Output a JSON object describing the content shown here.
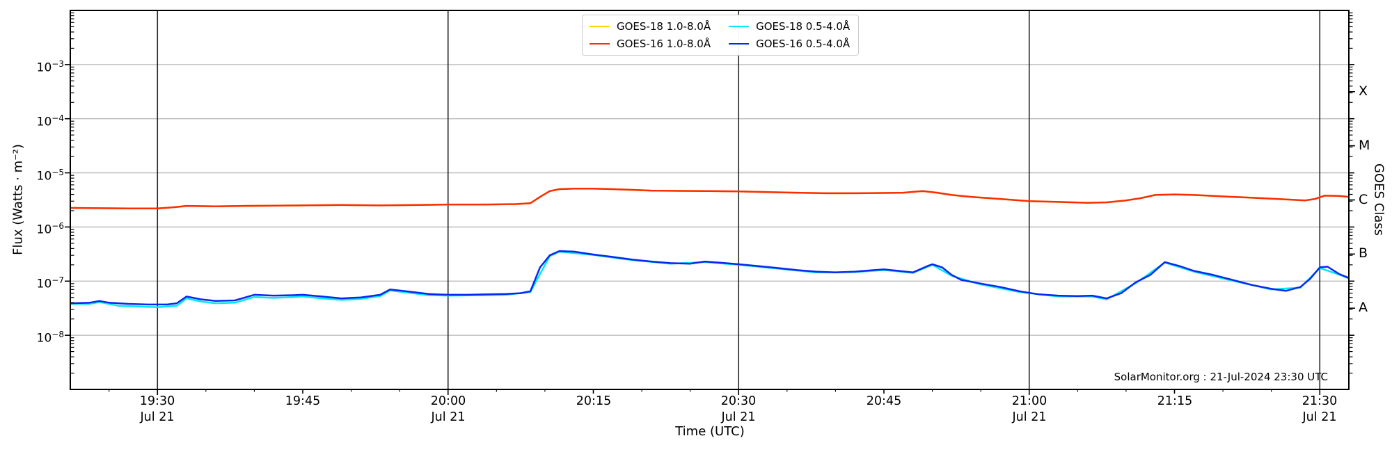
{
  "figure": {
    "attribution": "SolarMonitor.org : 21-Jul-2024 23:30 UTC",
    "background": "#ffffff"
  },
  "chart_data": {
    "type": "line",
    "title": "",
    "xlabel": "Time (UTC)",
    "ylabel": "Flux (Watts · m⁻²)",
    "right_axis_label": "GOES Class",
    "x_axis": {
      "anchor": "19:21 UTC Jul 21 2024",
      "domain_minutes": [
        0,
        132
      ],
      "major_ticks": [
        {
          "m": 9,
          "label": "19:30",
          "date": "Jul 21",
          "dark_gridline": true
        },
        {
          "m": 24,
          "label": "19:45",
          "date": "",
          "dark_gridline": false
        },
        {
          "m": 39,
          "label": "20:00",
          "date": "Jul 21",
          "dark_gridline": true
        },
        {
          "m": 54,
          "label": "20:15",
          "date": "",
          "dark_gridline": false
        },
        {
          "m": 69,
          "label": "20:30",
          "date": "Jul 21",
          "dark_gridline": true
        },
        {
          "m": 84,
          "label": "20:45",
          "date": "",
          "dark_gridline": false
        },
        {
          "m": 99,
          "label": "21:00",
          "date": "Jul 21",
          "dark_gridline": true
        },
        {
          "m": 114,
          "label": "21:15",
          "date": "",
          "dark_gridline": false
        },
        {
          "m": 129,
          "label": "21:30",
          "date": "Jul 21",
          "dark_gridline": true
        }
      ],
      "minor_tick_minutes": 5
    },
    "y_axis": {
      "scale": "log",
      "ylim_exponents": [
        -9,
        -2
      ],
      "tick_exponents": [
        -3,
        -4,
        -5,
        -6,
        -7,
        -8
      ]
    },
    "right_axis": {
      "classes": [
        {
          "label": "X",
          "exponent": -3.5
        },
        {
          "label": "M",
          "exponent": -4.5
        },
        {
          "label": "C",
          "exponent": -5.5
        },
        {
          "label": "B",
          "exponent": -6.5
        },
        {
          "label": "A",
          "exponent": -7.5
        }
      ]
    },
    "grid": {
      "horizontal_color": "#b5b5b5",
      "vertical_color": "#262626"
    },
    "series": [
      {
        "name": "GOES-18 1.0-8.0Å",
        "color": "#ffd302",
        "points": [
          [
            0,
            2.25e-06
          ],
          [
            6,
            2.2e-06
          ],
          [
            9,
            2.2e-06
          ],
          [
            10.5,
            2.3e-06
          ],
          [
            12,
            2.45e-06
          ],
          [
            15,
            2.4e-06
          ],
          [
            18,
            2.45e-06
          ],
          [
            24,
            2.5e-06
          ],
          [
            28,
            2.55e-06
          ],
          [
            32,
            2.5e-06
          ],
          [
            36,
            2.55e-06
          ],
          [
            39,
            2.6e-06
          ],
          [
            43,
            2.6e-06
          ],
          [
            46,
            2.65e-06
          ],
          [
            47.5,
            2.75e-06
          ],
          [
            48.5,
            3.6e-06
          ],
          [
            49.5,
            4.6e-06
          ],
          [
            50.5,
            5e-06
          ],
          [
            52,
            5.1e-06
          ],
          [
            54,
            5.1e-06
          ],
          [
            56,
            5e-06
          ],
          [
            58,
            4.85e-06
          ],
          [
            60,
            4.7e-06
          ],
          [
            63,
            4.65e-06
          ],
          [
            66,
            4.6e-06
          ],
          [
            69,
            4.55e-06
          ],
          [
            72,
            4.4e-06
          ],
          [
            75,
            4.3e-06
          ],
          [
            78,
            4.2e-06
          ],
          [
            81,
            4.2e-06
          ],
          [
            84,
            4.25e-06
          ],
          [
            86,
            4.3e-06
          ],
          [
            88,
            4.6e-06
          ],
          [
            89.5,
            4.3e-06
          ],
          [
            91,
            3.9e-06
          ],
          [
            93,
            3.6e-06
          ],
          [
            96,
            3.3e-06
          ],
          [
            99,
            3e-06
          ],
          [
            102,
            2.9e-06
          ],
          [
            105,
            2.8e-06
          ],
          [
            107,
            2.85e-06
          ],
          [
            109,
            3.1e-06
          ],
          [
            110.5,
            3.4e-06
          ],
          [
            112,
            3.9e-06
          ],
          [
            114,
            4e-06
          ],
          [
            116,
            3.9e-06
          ],
          [
            118,
            3.75e-06
          ],
          [
            120,
            3.6e-06
          ],
          [
            123,
            3.4e-06
          ],
          [
            126,
            3.2e-06
          ],
          [
            127.5,
            3.1e-06
          ],
          [
            128.5,
            3.3e-06
          ],
          [
            129.5,
            3.8e-06
          ],
          [
            131,
            3.75e-06
          ],
          [
            132,
            3.6e-06
          ]
        ]
      },
      {
        "name": "GOES-18 0.5-4.0Å",
        "color": "#00e9f5",
        "points": [
          [
            0,
            3.8e-08
          ],
          [
            2,
            3.8e-08
          ],
          [
            3,
            4.1e-08
          ],
          [
            5,
            3.5e-08
          ],
          [
            7,
            3.4e-08
          ],
          [
            9,
            3.3e-08
          ],
          [
            11,
            3.5e-08
          ],
          [
            12,
            4.8e-08
          ],
          [
            13.5,
            4.2e-08
          ],
          [
            15,
            3.9e-08
          ],
          [
            17,
            4e-08
          ],
          [
            19,
            5.1e-08
          ],
          [
            21,
            4.9e-08
          ],
          [
            23,
            5.1e-08
          ],
          [
            24,
            5.2e-08
          ],
          [
            26,
            4.8e-08
          ],
          [
            28,
            4.5e-08
          ],
          [
            30,
            4.7e-08
          ],
          [
            32,
            5.3e-08
          ],
          [
            33,
            6.7e-08
          ],
          [
            35,
            6.1e-08
          ],
          [
            37,
            5.5e-08
          ],
          [
            39,
            5.4e-08
          ],
          [
            43,
            5.5e-08
          ],
          [
            45,
            5.6e-08
          ],
          [
            47.5,
            6.3e-08
          ],
          [
            49.5,
            2.9e-07
          ],
          [
            50.5,
            3.5e-07
          ],
          [
            54,
            3.05e-07
          ],
          [
            58,
            2.45e-07
          ],
          [
            62,
            2.1e-07
          ],
          [
            65.5,
            2.25e-07
          ],
          [
            69,
            2e-07
          ],
          [
            73,
            1.7e-07
          ],
          [
            77,
            1.45e-07
          ],
          [
            81,
            1.47e-07
          ],
          [
            84,
            1.6e-07
          ],
          [
            87,
            1.42e-07
          ],
          [
            89,
            2e-07
          ],
          [
            91,
            1.25e-07
          ],
          [
            94,
            8.7e-08
          ],
          [
            98,
            6.3e-08
          ],
          [
            102,
            5.2e-08
          ],
          [
            105.5,
            5.2e-08
          ],
          [
            107,
            4.6e-08
          ],
          [
            110,
            9.2e-08
          ],
          [
            113,
            2.2e-07
          ],
          [
            116,
            1.5e-07
          ],
          [
            120,
            1.02e-07
          ],
          [
            124,
            7e-08
          ],
          [
            127,
            7.6e-08
          ],
          [
            129,
            1.75e-07
          ],
          [
            131,
            1.32e-07
          ],
          [
            132,
            1.12e-07
          ]
        ]
      },
      {
        "name": "GOES-16 1.0-8.0Å",
        "color": "#fb2e02",
        "points": [
          [
            0,
            2.25e-06
          ],
          [
            6,
            2.2e-06
          ],
          [
            9,
            2.2e-06
          ],
          [
            10.5,
            2.3e-06
          ],
          [
            12,
            2.45e-06
          ],
          [
            15,
            2.4e-06
          ],
          [
            18,
            2.45e-06
          ],
          [
            24,
            2.5e-06
          ],
          [
            28,
            2.55e-06
          ],
          [
            32,
            2.5e-06
          ],
          [
            36,
            2.55e-06
          ],
          [
            39,
            2.6e-06
          ],
          [
            43,
            2.6e-06
          ],
          [
            46,
            2.65e-06
          ],
          [
            47.5,
            2.75e-06
          ],
          [
            48.5,
            3.6e-06
          ],
          [
            49.5,
            4.6e-06
          ],
          [
            50.5,
            5e-06
          ],
          [
            52,
            5.1e-06
          ],
          [
            54,
            5.1e-06
          ],
          [
            56,
            5e-06
          ],
          [
            58,
            4.85e-06
          ],
          [
            60,
            4.7e-06
          ],
          [
            63,
            4.65e-06
          ],
          [
            66,
            4.6e-06
          ],
          [
            69,
            4.55e-06
          ],
          [
            72,
            4.4e-06
          ],
          [
            75,
            4.3e-06
          ],
          [
            78,
            4.2e-06
          ],
          [
            81,
            4.2e-06
          ],
          [
            84,
            4.25e-06
          ],
          [
            86,
            4.3e-06
          ],
          [
            88,
            4.6e-06
          ],
          [
            89.5,
            4.3e-06
          ],
          [
            91,
            3.9e-06
          ],
          [
            93,
            3.6e-06
          ],
          [
            96,
            3.3e-06
          ],
          [
            99,
            3e-06
          ],
          [
            102,
            2.9e-06
          ],
          [
            105,
            2.8e-06
          ],
          [
            107,
            2.85e-06
          ],
          [
            109,
            3.1e-06
          ],
          [
            110.5,
            3.4e-06
          ],
          [
            112,
            3.9e-06
          ],
          [
            114,
            4e-06
          ],
          [
            116,
            3.9e-06
          ],
          [
            118,
            3.75e-06
          ],
          [
            120,
            3.6e-06
          ],
          [
            123,
            3.4e-06
          ],
          [
            126,
            3.2e-06
          ],
          [
            127.5,
            3.1e-06
          ],
          [
            128.5,
            3.3e-06
          ],
          [
            129.5,
            3.8e-06
          ],
          [
            131,
            3.75e-06
          ],
          [
            132,
            3.6e-06
          ]
        ]
      },
      {
        "name": "GOES-16 0.5-4.0Å",
        "color": "#0927f0",
        "points": [
          [
            0,
            3.9e-08
          ],
          [
            2,
            4e-08
          ],
          [
            3,
            4.3e-08
          ],
          [
            4,
            4e-08
          ],
          [
            6,
            3.8e-08
          ],
          [
            8,
            3.7e-08
          ],
          [
            10,
            3.7e-08
          ],
          [
            11,
            3.9e-08
          ],
          [
            12,
            5.2e-08
          ],
          [
            13.5,
            4.6e-08
          ],
          [
            15,
            4.3e-08
          ],
          [
            17,
            4.4e-08
          ],
          [
            19,
            5.6e-08
          ],
          [
            21,
            5.4e-08
          ],
          [
            23,
            5.5e-08
          ],
          [
            24,
            5.6e-08
          ],
          [
            26,
            5.2e-08
          ],
          [
            28,
            4.8e-08
          ],
          [
            30,
            5e-08
          ],
          [
            32,
            5.6e-08
          ],
          [
            33,
            7e-08
          ],
          [
            35,
            6.4e-08
          ],
          [
            37,
            5.8e-08
          ],
          [
            39,
            5.6e-08
          ],
          [
            41,
            5.6e-08
          ],
          [
            43,
            5.7e-08
          ],
          [
            45,
            5.8e-08
          ],
          [
            46.5,
            6e-08
          ],
          [
            47.5,
            6.5e-08
          ],
          [
            48.5,
            1.8e-07
          ],
          [
            49.5,
            3e-07
          ],
          [
            50.5,
            3.6e-07
          ],
          [
            52,
            3.5e-07
          ],
          [
            54,
            3.1e-07
          ],
          [
            56,
            2.8e-07
          ],
          [
            58,
            2.5e-07
          ],
          [
            60,
            2.3e-07
          ],
          [
            62,
            2.15e-07
          ],
          [
            64,
            2.1e-07
          ],
          [
            65.5,
            2.3e-07
          ],
          [
            67,
            2.2e-07
          ],
          [
            69,
            2.05e-07
          ],
          [
            71,
            1.9e-07
          ],
          [
            73,
            1.75e-07
          ],
          [
            75,
            1.6e-07
          ],
          [
            77,
            1.5e-07
          ],
          [
            79,
            1.45e-07
          ],
          [
            81,
            1.5e-07
          ],
          [
            83,
            1.6e-07
          ],
          [
            84,
            1.65e-07
          ],
          [
            85.5,
            1.55e-07
          ],
          [
            87,
            1.45e-07
          ],
          [
            88.5,
            1.9e-07
          ],
          [
            89,
            2.05e-07
          ],
          [
            90,
            1.8e-07
          ],
          [
            91,
            1.3e-07
          ],
          [
            92,
            1.05e-07
          ],
          [
            94,
            9e-08
          ],
          [
            96,
            7.8e-08
          ],
          [
            98,
            6.5e-08
          ],
          [
            100,
            5.7e-08
          ],
          [
            102,
            5.4e-08
          ],
          [
            104,
            5.3e-08
          ],
          [
            105.5,
            5.4e-08
          ],
          [
            107,
            4.8e-08
          ],
          [
            108.5,
            6e-08
          ],
          [
            110,
            9.5e-08
          ],
          [
            111.5,
            1.3e-07
          ],
          [
            113,
            2.25e-07
          ],
          [
            114.5,
            1.9e-07
          ],
          [
            116,
            1.55e-07
          ],
          [
            118,
            1.3e-07
          ],
          [
            120,
            1.05e-07
          ],
          [
            122,
            8.5e-08
          ],
          [
            124,
            7.2e-08
          ],
          [
            125.5,
            6.6e-08
          ],
          [
            127,
            7.8e-08
          ],
          [
            128,
            1.1e-07
          ],
          [
            129,
            1.8e-07
          ],
          [
            129.8,
            1.85e-07
          ],
          [
            131,
            1.35e-07
          ],
          [
            132,
            1.15e-07
          ]
        ]
      }
    ],
    "legend": {
      "position": "top-center",
      "columns": [
        [
          "GOES-18 1.0-8.0Å",
          "GOES-16 1.0-8.0Å"
        ],
        [
          "GOES-18 0.5-4.0Å",
          "GOES-16 0.5-4.0Å"
        ]
      ]
    }
  }
}
